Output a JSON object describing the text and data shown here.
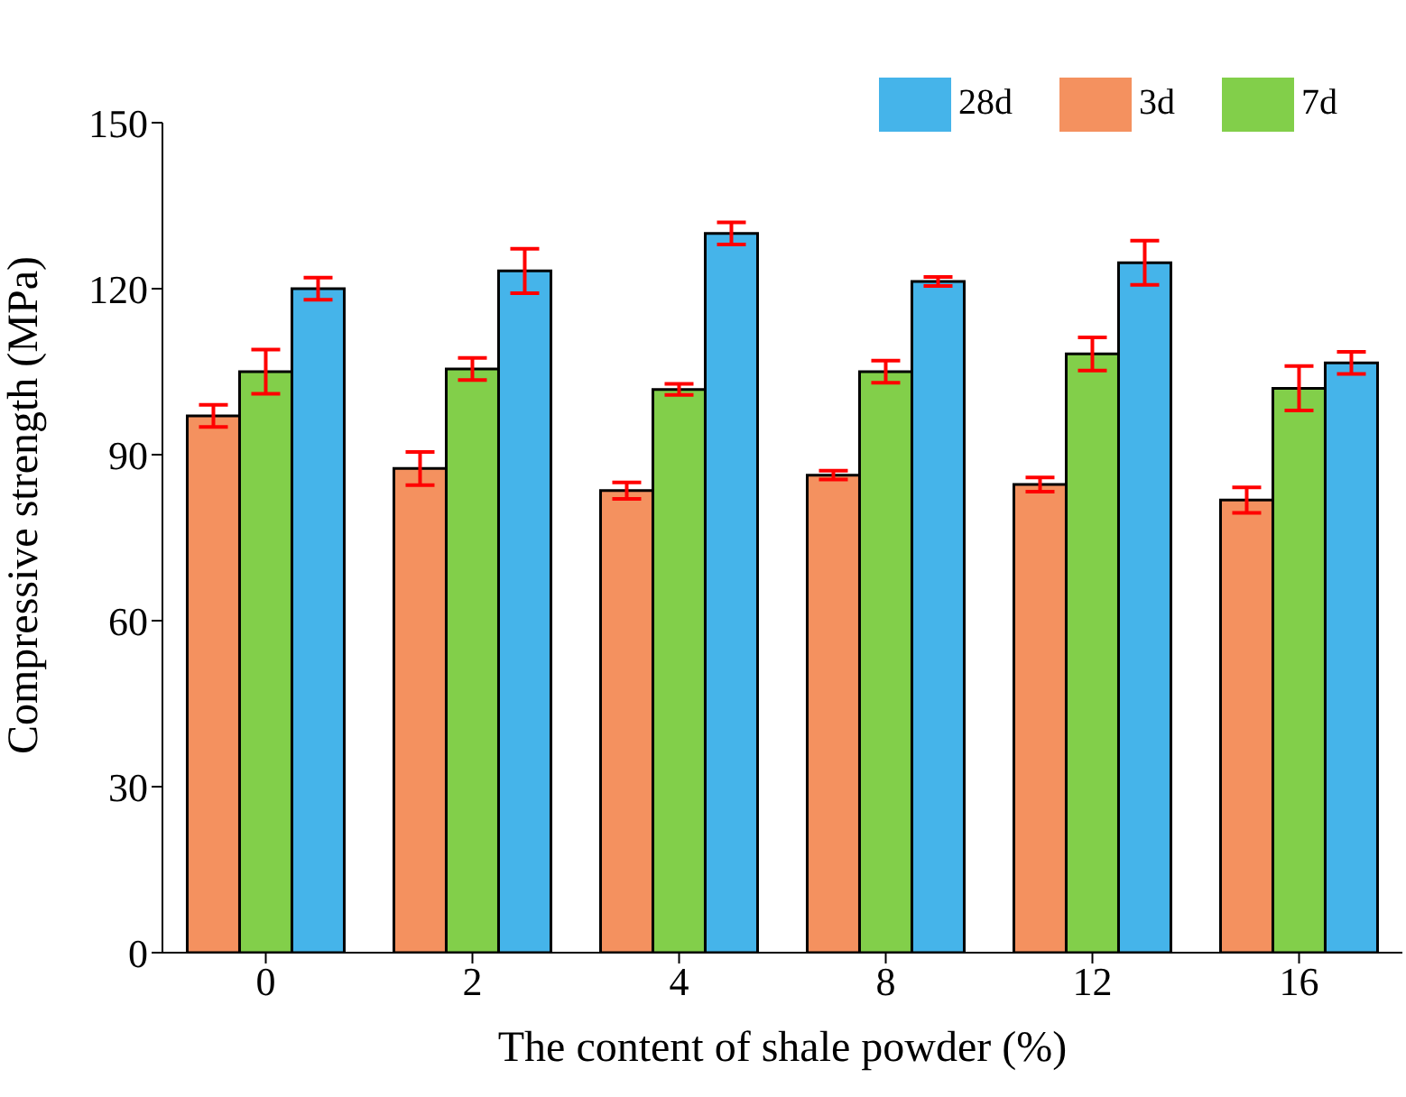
{
  "chart_data": {
    "type": "bar",
    "xlabel": "The content of shale powder (%)",
    "ylabel": "Compressive strength (MPa)",
    "categories": [
      "0",
      "2",
      "4",
      "8",
      "12",
      "16"
    ],
    "ylim": [
      0,
      150
    ],
    "yticks": [
      0,
      30,
      60,
      90,
      120,
      150
    ],
    "legend": "top right",
    "grid": false,
    "series": [
      {
        "name": "3d",
        "color": "#f4915f",
        "values": [
          97,
          87.5,
          83.5,
          86.3,
          84.6,
          81.8
        ],
        "errors": [
          2,
          3,
          1.5,
          0.8,
          1.3,
          2.3
        ]
      },
      {
        "name": "7d",
        "color": "#82cf4a",
        "values": [
          105,
          105.5,
          101.8,
          105,
          108.2,
          102
        ],
        "errors": [
          4,
          2,
          1,
          2,
          3,
          4
        ]
      },
      {
        "name": "28d",
        "color": "#45b4ea",
        "values": [
          120,
          123.2,
          130,
          121.3,
          124.7,
          106.6
        ],
        "errors": [
          2,
          4,
          2,
          0.8,
          4,
          2
        ]
      }
    ]
  }
}
